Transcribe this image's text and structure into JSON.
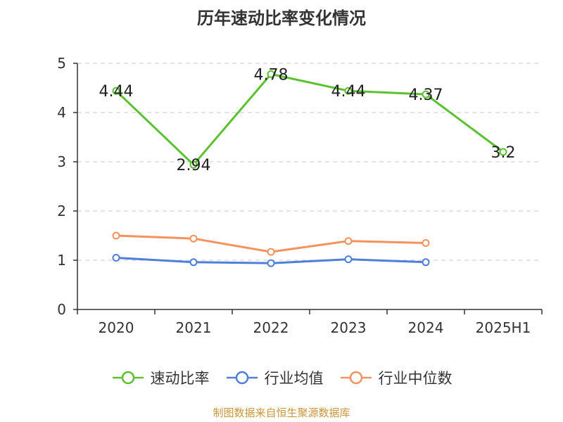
{
  "chart_data": {
    "type": "line",
    "title": "历年速动比率变化情况",
    "categories": [
      "2020",
      "2021",
      "2022",
      "2023",
      "2024",
      "2025H1"
    ],
    "ylim": [
      0,
      5
    ],
    "yticks": [
      "0",
      "1",
      "2",
      "3",
      "4",
      "5"
    ],
    "grid": true,
    "legend_position": "bottom",
    "series": [
      {
        "name": "速动比率",
        "color": "#5ac130",
        "values": [
          4.44,
          2.94,
          4.78,
          4.44,
          4.37,
          3.2
        ],
        "labels": [
          "4.44",
          "2.94",
          "4.78",
          "4.44",
          "4.37",
          "3.2"
        ]
      },
      {
        "name": "行业均值",
        "color": "#4e7fdb",
        "values": [
          1.05,
          0.96,
          0.94,
          1.02,
          0.96,
          null
        ]
      },
      {
        "name": "行业中位数",
        "color": "#f5915d",
        "values": [
          1.5,
          1.44,
          1.17,
          1.39,
          1.35,
          null
        ]
      }
    ]
  },
  "source_text": "制图数据来自恒生聚源数据库"
}
